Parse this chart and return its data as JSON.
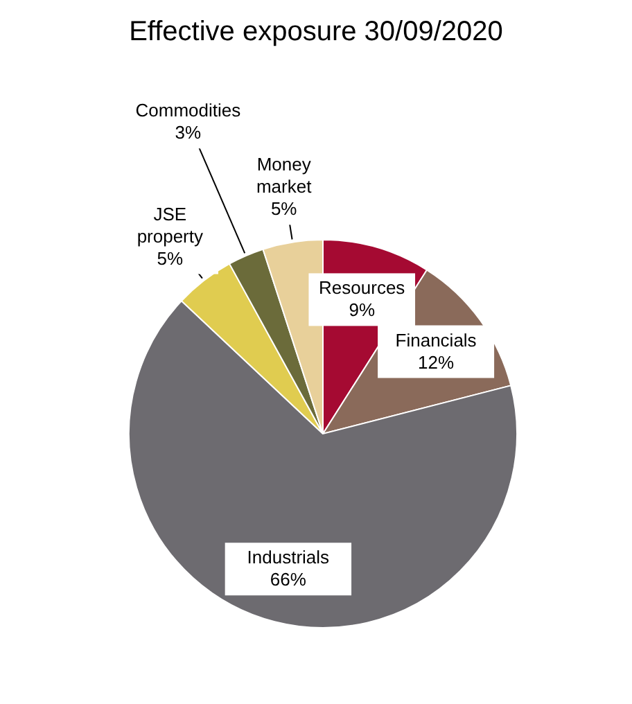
{
  "chart_data": {
    "type": "pie",
    "title": "Effective exposure 30/09/2020",
    "categories": [
      "Resources",
      "Financials",
      "Industrials",
      "JSE property",
      "Commodities",
      "Money market"
    ],
    "values": [
      9,
      12,
      66,
      5,
      3,
      5
    ],
    "value_labels": [
      "9%",
      "12%",
      "66%",
      "5%",
      "3%",
      "5%"
    ],
    "colors": [
      "#a50a32",
      "#8a6a5a",
      "#6d6b70",
      "#e0cc50",
      "#6b6b3a",
      "#e8d09a"
    ],
    "legend": false
  }
}
